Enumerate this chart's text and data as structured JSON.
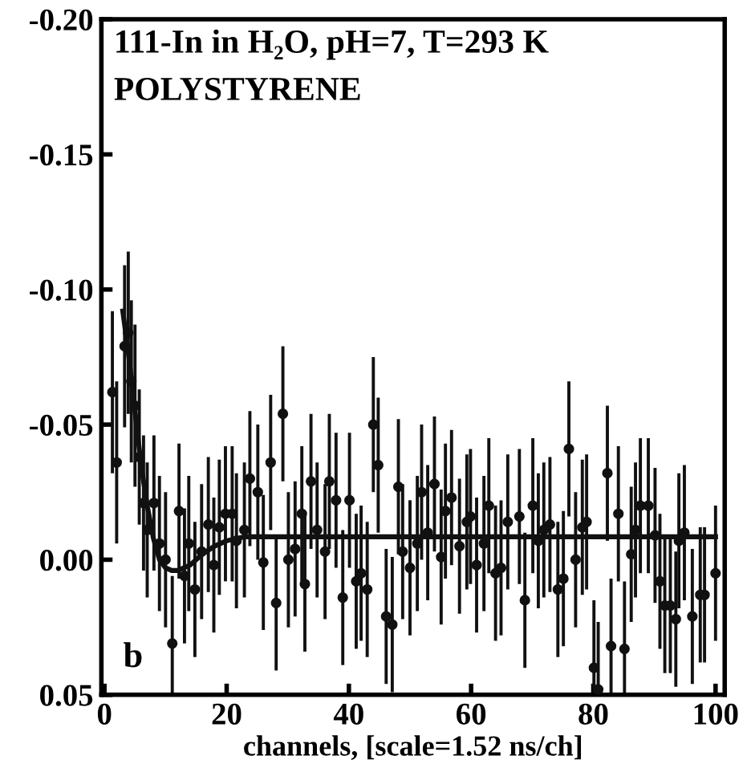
{
  "chart_data": {
    "type": "scatter",
    "title": "111-In in H₂O, pH=7, T=293 K",
    "subtitle": "POLYSTYRENE",
    "xlabel": "channels, [scale=1.52 ns/ch]",
    "annotations": [
      "b"
    ],
    "xlim": [
      -0.5,
      101.5
    ],
    "xticks": [
      0,
      20,
      40,
      60,
      80,
      100
    ],
    "ylim": [
      0.05,
      -0.2
    ],
    "yticks": [
      {
        "value": -0.2,
        "label": "-0.20"
      },
      {
        "value": -0.15,
        "label": "-0.15"
      },
      {
        "value": -0.1,
        "label": "-0.10"
      },
      {
        "value": -0.05,
        "label": "-0.05"
      },
      {
        "value": 0,
        "label": "0.00"
      },
      {
        "value": 0.05,
        "label": "0.05"
      }
    ],
    "grid": false,
    "legend": false,
    "marker": "circle",
    "series": [
      {
        "color": "#111111",
        "x": [
          1.3,
          2.0,
          3.3,
          3.9,
          4.4,
          5.0,
          5.7,
          6.4,
          7.0,
          8.1,
          9.0,
          10.0,
          11.1,
          12.2,
          13.1,
          13.8,
          14.8,
          15.9,
          17.0,
          17.9,
          18.8,
          19.8,
          20.9,
          21.6,
          22.9,
          23.8,
          25.1,
          26.0,
          27.2,
          28.1,
          29.2,
          30.1,
          31.2,
          32.3,
          32.8,
          33.8,
          34.8,
          36.1,
          36.8,
          37.9,
          39.0,
          40.1,
          41.2,
          42.0,
          43.0,
          44.0,
          44.8,
          46.1,
          47.1,
          48.1,
          48.8,
          50.0,
          51.2,
          51.9,
          52.9,
          54.0,
          55.1,
          55.8,
          56.8,
          58.1,
          59.3,
          59.9,
          60.9,
          62.1,
          62.9,
          64.0,
          64.9,
          66.0,
          67.9,
          68.8,
          70.1,
          71.0,
          71.9,
          72.9,
          74.2,
          75.1,
          76.0,
          77.1,
          78.2,
          78.9,
          80.1,
          80.8,
          82.3,
          82.9,
          84.1,
          85.1,
          86.2,
          86.9,
          87.7,
          89.0,
          90.1,
          90.9,
          91.7,
          92.6,
          93.5,
          94.0,
          94.9,
          96.2,
          97.5,
          98.2,
          100.0
        ],
        "values": [
          -0.062,
          -0.036,
          -0.079,
          -0.084,
          -0.066,
          -0.057,
          -0.038,
          -0.021,
          -0.011,
          -0.021,
          -0.006,
          0.0,
          0.031,
          -0.018,
          0.006,
          -0.006,
          0.011,
          -0.003,
          -0.013,
          0.002,
          -0.012,
          -0.017,
          -0.017,
          -0.007,
          -0.011,
          -0.03,
          -0.025,
          0.001,
          -0.036,
          0.016,
          -0.054,
          0.0,
          -0.004,
          -0.017,
          0.009,
          -0.029,
          -0.011,
          -0.003,
          -0.029,
          -0.022,
          0.014,
          -0.022,
          0.008,
          0.005,
          0.011,
          -0.05,
          -0.035,
          0.021,
          0.024,
          -0.027,
          -0.003,
          0.003,
          -0.006,
          -0.025,
          -0.01,
          -0.028,
          -0.001,
          -0.018,
          -0.023,
          -0.005,
          -0.014,
          -0.016,
          0.002,
          -0.006,
          -0.02,
          0.005,
          0.003,
          -0.014,
          -0.016,
          0.015,
          -0.02,
          -0.007,
          -0.011,
          -0.013,
          0.011,
          0.007,
          -0.041,
          0.0,
          -0.012,
          -0.014,
          0.04,
          0.048,
          -0.032,
          0.032,
          -0.017,
          0.033,
          -0.002,
          -0.011,
          -0.02,
          -0.02,
          -0.009,
          0.008,
          0.017,
          0.017,
          0.022,
          -0.007,
          -0.01,
          0.021,
          0.013,
          0.013,
          0.005
        ],
        "errors": [
          0.03,
          0.03,
          0.03,
          0.03,
          0.03,
          0.03,
          0.025,
          0.025,
          0.025,
          0.025,
          0.025,
          0.025,
          0.025,
          0.025,
          0.025,
          0.025,
          0.025,
          0.025,
          0.025,
          0.025,
          0.025,
          0.025,
          0.025,
          0.025,
          0.025,
          0.025,
          0.025,
          0.025,
          0.025,
          0.025,
          0.025,
          0.025,
          0.025,
          0.025,
          0.025,
          0.025,
          0.025,
          0.025,
          0.025,
          0.025,
          0.025,
          0.025,
          0.025,
          0.025,
          0.025,
          0.025,
          0.025,
          0.025,
          0.025,
          0.025,
          0.025,
          0.025,
          0.025,
          0.025,
          0.025,
          0.025,
          0.025,
          0.025,
          0.025,
          0.025,
          0.025,
          0.025,
          0.025,
          0.025,
          0.025,
          0.025,
          0.025,
          0.025,
          0.025,
          0.025,
          0.025,
          0.025,
          0.025,
          0.025,
          0.025,
          0.025,
          0.025,
          0.025,
          0.025,
          0.025,
          0.025,
          0.025,
          0.025,
          0.025,
          0.025,
          0.025,
          0.025,
          0.025,
          0.025,
          0.025,
          0.025,
          0.025,
          0.025,
          0.025,
          0.025,
          0.025,
          0.025,
          0.025,
          0.025,
          0.025,
          0.025
        ]
      },
      {
        "type": "line",
        "color": "#111111",
        "marker": "none",
        "x": [
          3,
          4,
          5,
          6,
          7,
          8,
          9,
          10,
          11,
          12,
          14,
          16,
          18,
          20,
          23,
          100
        ],
        "values": [
          -0.092,
          -0.075,
          -0.055,
          -0.035,
          -0.02,
          -0.008,
          0.0,
          0.003,
          0.004,
          0.004,
          0.002,
          -0.002,
          -0.005,
          -0.007,
          -0.0085,
          -0.0085
        ]
      }
    ]
  }
}
